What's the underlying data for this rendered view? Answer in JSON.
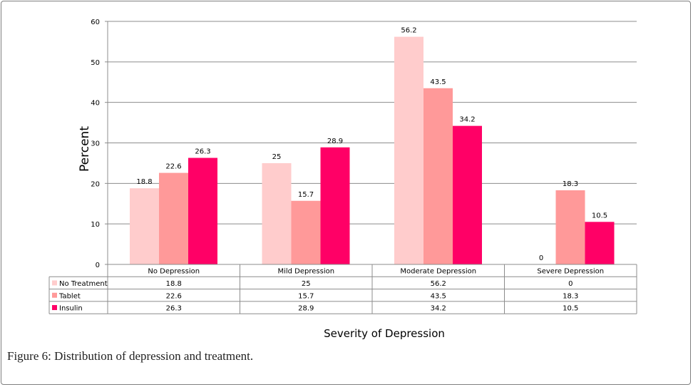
{
  "caption": {
    "label": "Figure 6:",
    "text": " Distribution of depression and treatment."
  },
  "chart_data": {
    "type": "bar",
    "ylabel": "Percent",
    "xlabel": "Severity of Depression",
    "ylim": [
      0,
      60
    ],
    "yticks": [
      0,
      10,
      20,
      30,
      40,
      50,
      60
    ],
    "grid": true,
    "legend_placement": "data table below chart",
    "categories": [
      "No Depression",
      "Mild Depression",
      "Moderate Depression",
      "Severe Depression"
    ],
    "series": [
      {
        "name": "No Treatment",
        "values": [
          18.8,
          25,
          56.2,
          0
        ],
        "labels": [
          "18.8",
          "25",
          "56.2",
          "0"
        ],
        "color": "#ffcccc"
      },
      {
        "name": "Tablet",
        "values": [
          22.6,
          15.7,
          43.5,
          18.3
        ],
        "labels": [
          "22.6",
          "15.7",
          "43.5",
          "18.3"
        ],
        "color": "#ff9999"
      },
      {
        "name": "Insulin",
        "values": [
          26.3,
          28.9,
          34.2,
          10.5
        ],
        "labels": [
          "26.3",
          "28.9",
          "34.2",
          "10.5"
        ],
        "color": "#ff0066"
      }
    ]
  }
}
